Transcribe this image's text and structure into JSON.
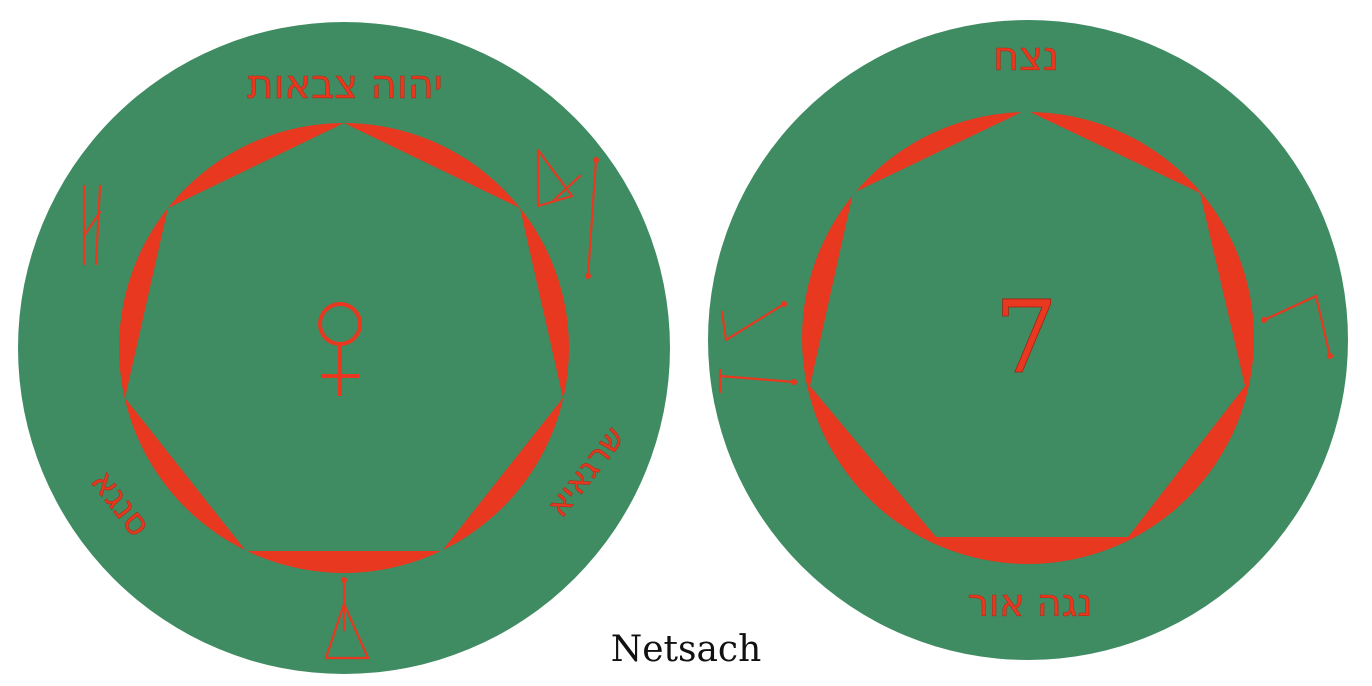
{
  "caption": "Netsach",
  "colors": {
    "disc": "#3f8b62",
    "accent": "#e8381f",
    "background": "#ffffff"
  },
  "left_disc": {
    "top_text": "יהוה צבאות",
    "left_text": "סנגא",
    "right_text": "שרגאיא",
    "center_symbol": "♀",
    "center_symbol_icon": "venus-symbol-icon"
  },
  "right_disc": {
    "top_text": "נצח",
    "bottom_text": "נגה אור",
    "center_number": "7"
  }
}
